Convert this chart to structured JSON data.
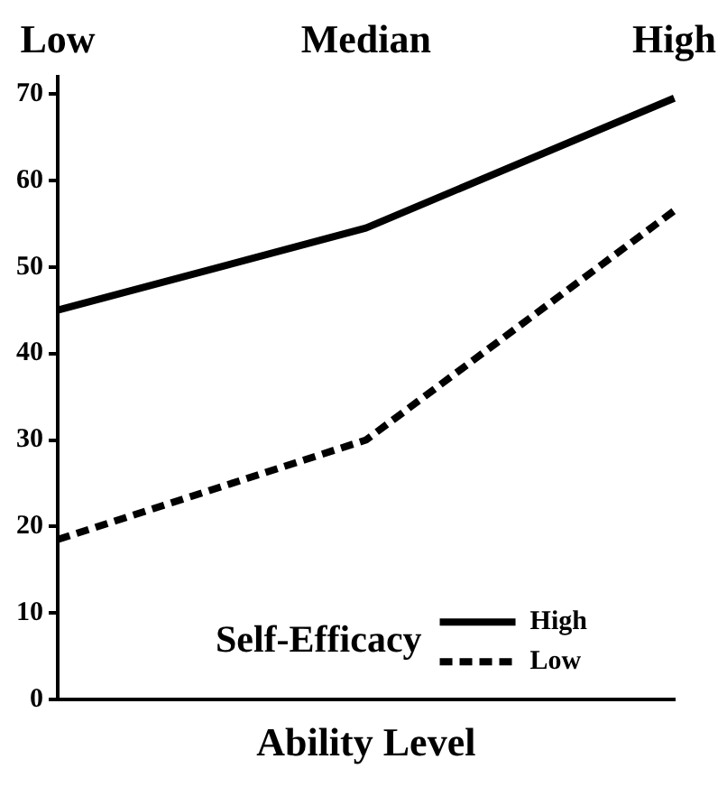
{
  "chart_data": {
    "type": "line",
    "xlabel": "Ability Level",
    "legend_title": "Self-Efficacy",
    "categories": [
      "Low",
      "Median",
      "High"
    ],
    "series": [
      {
        "name": "High",
        "color": "#000000",
        "line_style": "solid",
        "values": [
          45,
          54.5,
          69.5
        ]
      },
      {
        "name": "Low",
        "color": "#000000",
        "line_style": "dashed",
        "values": [
          18.5,
          30,
          56.5
        ]
      }
    ],
    "ylim": [
      0,
      72
    ],
    "yticks": [
      0,
      10,
      20,
      30,
      40,
      50,
      60,
      70
    ],
    "grid": false,
    "legend": "bottom right",
    "marker": "none"
  }
}
